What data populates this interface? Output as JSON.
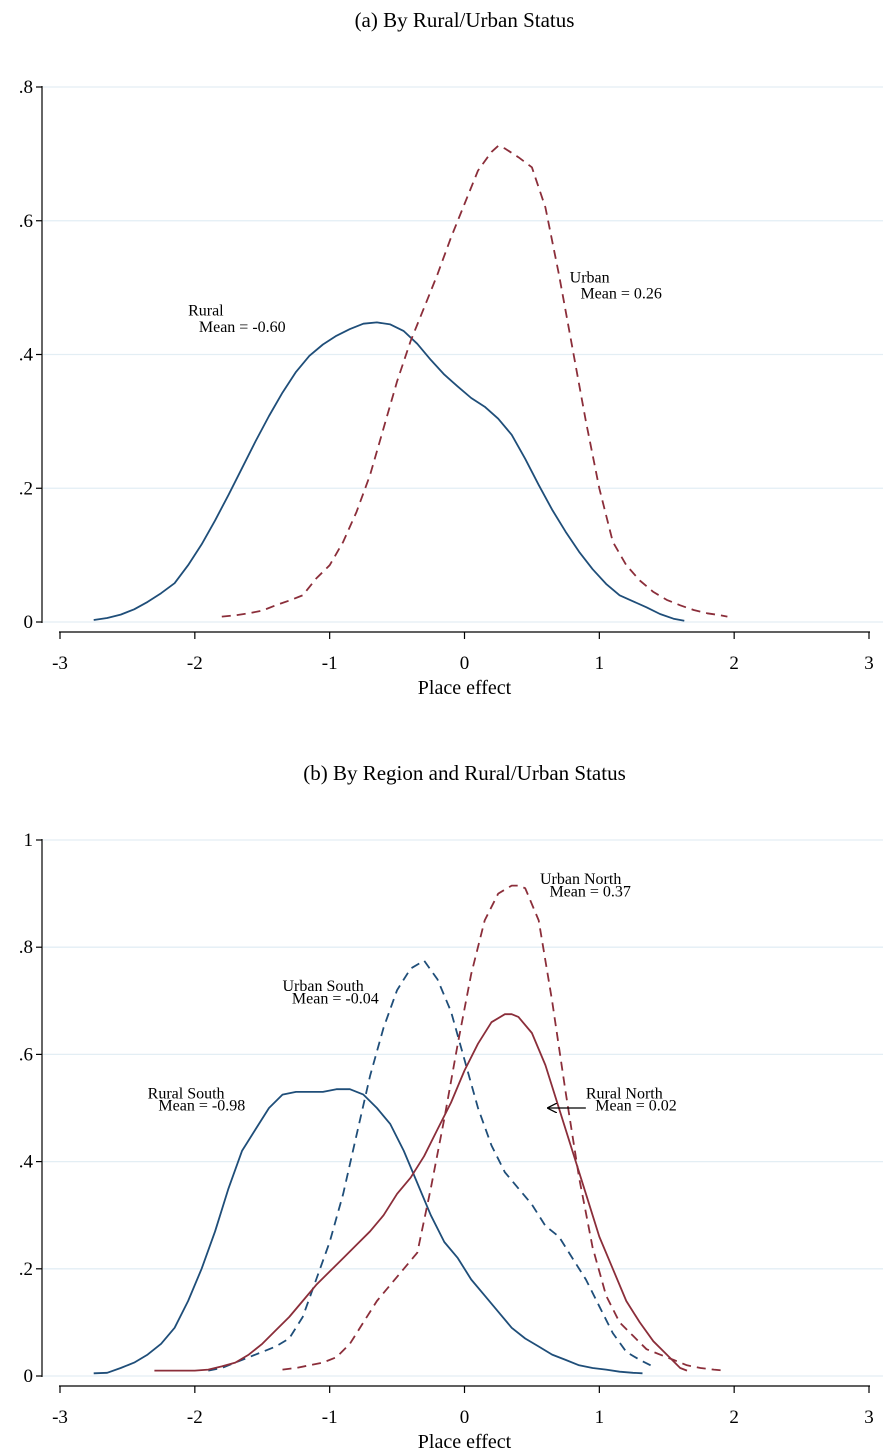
{
  "colors": {
    "rural": "#1f4e79",
    "urban": "#8b2e3a",
    "grid": "#e3eef4"
  },
  "chart_data": [
    {
      "type": "line",
      "title": "(a) By Rural/Urban Status",
      "xlabel": "Place effect",
      "ylabel": "",
      "xlim": [
        -3,
        3
      ],
      "ylim": [
        0,
        0.8
      ],
      "xticks": [
        -3,
        -2,
        -1,
        0,
        1,
        2,
        3
      ],
      "xtick_labels": [
        "-3",
        "-2",
        "-1",
        "0",
        "1",
        "2",
        "3"
      ],
      "yticks": [
        0,
        0.2,
        0.4,
        0.6,
        0.8
      ],
      "ytick_labels": [
        "0",
        ".2",
        ".4",
        ".6",
        ".8"
      ],
      "grid": true,
      "series": [
        {
          "key": "rural",
          "name": "Rural",
          "mean_label": "Mean = -0.60",
          "color_key": "rural",
          "dash": "solid",
          "x": [
            -2.75,
            -2.65,
            -2.55,
            -2.45,
            -2.35,
            -2.25,
            -2.15,
            -2.05,
            -1.95,
            -1.85,
            -1.75,
            -1.65,
            -1.55,
            -1.45,
            -1.35,
            -1.25,
            -1.15,
            -1.05,
            -0.95,
            -0.85,
            -0.75,
            -0.65,
            -0.55,
            -0.45,
            -0.35,
            -0.25,
            -0.15,
            -0.05,
            0.05,
            0.15,
            0.25,
            0.35,
            0.45,
            0.55,
            0.65,
            0.75,
            0.85,
            0.95,
            1.05,
            1.15,
            1.25,
            1.35,
            1.45,
            1.55,
            1.63
          ],
          "y": [
            0.003,
            0.006,
            0.011,
            0.019,
            0.03,
            0.043,
            0.058,
            0.085,
            0.116,
            0.152,
            0.19,
            0.23,
            0.27,
            0.308,
            0.343,
            0.374,
            0.398,
            0.415,
            0.428,
            0.438,
            0.446,
            0.448,
            0.445,
            0.435,
            0.416,
            0.392,
            0.37,
            0.352,
            0.335,
            0.322,
            0.304,
            0.28,
            0.244,
            0.205,
            0.168,
            0.135,
            0.105,
            0.079,
            0.057,
            0.04,
            0.031,
            0.022,
            0.012,
            0.005,
            0.002
          ]
        },
        {
          "key": "urban",
          "name": "Urban",
          "mean_label": "Mean = 0.26",
          "color_key": "urban",
          "dash": "dashed",
          "x": [
            -1.8,
            -1.7,
            -1.6,
            -1.5,
            -1.4,
            -1.3,
            -1.2,
            -1.1,
            -1.0,
            -0.9,
            -0.8,
            -0.7,
            -0.6,
            -0.5,
            -0.4,
            -0.3,
            -0.2,
            -0.1,
            0.0,
            0.1,
            0.2,
            0.25,
            0.3,
            0.4,
            0.5,
            0.6,
            0.7,
            0.8,
            0.9,
            1.0,
            1.1,
            1.2,
            1.3,
            1.4,
            1.5,
            1.6,
            1.7,
            1.8,
            1.9,
            1.95
          ],
          "y": [
            0.008,
            0.01,
            0.013,
            0.017,
            0.025,
            0.032,
            0.04,
            0.065,
            0.085,
            0.12,
            0.165,
            0.22,
            0.29,
            0.36,
            0.42,
            0.47,
            0.52,
            0.575,
            0.625,
            0.675,
            0.703,
            0.712,
            0.708,
            0.695,
            0.68,
            0.62,
            0.52,
            0.41,
            0.3,
            0.2,
            0.12,
            0.085,
            0.062,
            0.045,
            0.033,
            0.025,
            0.018,
            0.013,
            0.01,
            0.008
          ]
        }
      ],
      "annotations": [
        {
          "series": "rural",
          "name_x": -2.05,
          "name_y": 0.458,
          "mean_x": -1.97,
          "mean_y": 0.434
        },
        {
          "series": "urban",
          "name_x": 0.78,
          "name_y": 0.508,
          "mean_x": 0.86,
          "mean_y": 0.484
        }
      ]
    },
    {
      "type": "line",
      "title": "(b) By Region and Rural/Urban Status",
      "xlabel": "Place effect",
      "ylabel": "",
      "xlim": [
        -3,
        3
      ],
      "ylim": [
        0,
        1
      ],
      "xticks": [
        -3,
        -2,
        -1,
        0,
        1,
        2,
        3
      ],
      "xtick_labels": [
        "-3",
        "-2",
        "-1",
        "0",
        "1",
        "2",
        "3"
      ],
      "yticks": [
        0,
        0.2,
        0.4,
        0.6,
        0.8,
        1.0
      ],
      "ytick_labels": [
        "0",
        ".2",
        ".4",
        ".6",
        ".8",
        "1"
      ],
      "grid": true,
      "series": [
        {
          "key": "rural_south",
          "name": "Rural South",
          "mean_label": "Mean = -0.98",
          "color_key": "rural",
          "dash": "solid",
          "x": [
            -2.75,
            -2.65,
            -2.55,
            -2.45,
            -2.35,
            -2.25,
            -2.15,
            -2.05,
            -1.95,
            -1.85,
            -1.75,
            -1.65,
            -1.55,
            -1.45,
            -1.35,
            -1.25,
            -1.15,
            -1.05,
            -0.95,
            -0.85,
            -0.75,
            -0.65,
            -0.55,
            -0.45,
            -0.35,
            -0.25,
            -0.15,
            -0.05,
            0.05,
            0.15,
            0.25,
            0.35,
            0.45,
            0.55,
            0.65,
            0.75,
            0.85,
            0.95,
            1.05,
            1.15,
            1.25,
            1.32
          ],
          "y": [
            0.005,
            0.006,
            0.015,
            0.025,
            0.04,
            0.06,
            0.09,
            0.14,
            0.2,
            0.27,
            0.35,
            0.42,
            0.46,
            0.5,
            0.525,
            0.53,
            0.53,
            0.53,
            0.535,
            0.535,
            0.525,
            0.5,
            0.47,
            0.42,
            0.36,
            0.3,
            0.25,
            0.22,
            0.18,
            0.15,
            0.12,
            0.09,
            0.07,
            0.055,
            0.04,
            0.03,
            0.02,
            0.015,
            0.012,
            0.008,
            0.006,
            0.005
          ]
        },
        {
          "key": "urban_south",
          "name": "Urban South",
          "mean_label": "Mean = -0.04",
          "color_key": "rural",
          "dash": "dashed",
          "x": [
            -1.9,
            -1.8,
            -1.7,
            -1.6,
            -1.5,
            -1.4,
            -1.3,
            -1.2,
            -1.1,
            -1.0,
            -0.9,
            -0.8,
            -0.7,
            -0.6,
            -0.5,
            -0.4,
            -0.3,
            -0.2,
            -0.1,
            0.0,
            0.1,
            0.2,
            0.3,
            0.4,
            0.5,
            0.6,
            0.7,
            0.8,
            0.9,
            1.0,
            1.1,
            1.2,
            1.3,
            1.38
          ],
          "y": [
            0.01,
            0.015,
            0.025,
            0.035,
            0.045,
            0.055,
            0.07,
            0.11,
            0.18,
            0.25,
            0.34,
            0.45,
            0.56,
            0.65,
            0.72,
            0.76,
            0.775,
            0.74,
            0.68,
            0.59,
            0.5,
            0.43,
            0.38,
            0.35,
            0.32,
            0.28,
            0.26,
            0.22,
            0.18,
            0.13,
            0.08,
            0.045,
            0.03,
            0.02
          ]
        },
        {
          "key": "rural_north",
          "name": "Rural North",
          "mean_label": "Mean = 0.02",
          "color_key": "urban",
          "dash": "solid",
          "x": [
            -2.3,
            -2.2,
            -2.1,
            -2.0,
            -1.9,
            -1.8,
            -1.7,
            -1.6,
            -1.5,
            -1.4,
            -1.3,
            -1.2,
            -1.1,
            -1.0,
            -0.9,
            -0.8,
            -0.7,
            -0.6,
            -0.5,
            -0.4,
            -0.3,
            -0.2,
            -0.1,
            0.0,
            0.1,
            0.2,
            0.3,
            0.35,
            0.4,
            0.5,
            0.6,
            0.7,
            0.8,
            0.9,
            1.0,
            1.1,
            1.2,
            1.3,
            1.4,
            1.5,
            1.6,
            1.65
          ],
          "y": [
            0.01,
            0.01,
            0.01,
            0.01,
            0.012,
            0.018,
            0.025,
            0.04,
            0.06,
            0.085,
            0.11,
            0.14,
            0.17,
            0.195,
            0.22,
            0.245,
            0.27,
            0.3,
            0.34,
            0.37,
            0.41,
            0.46,
            0.51,
            0.57,
            0.62,
            0.66,
            0.675,
            0.675,
            0.67,
            0.64,
            0.58,
            0.5,
            0.42,
            0.34,
            0.26,
            0.2,
            0.14,
            0.1,
            0.065,
            0.04,
            0.015,
            0.01
          ]
        },
        {
          "key": "urban_north",
          "name": "Urban North",
          "mean_label": "Mean = 0.37",
          "color_key": "urban",
          "dash": "dashed",
          "x": [
            -1.35,
            -1.25,
            -1.15,
            -1.05,
            -0.95,
            -0.85,
            -0.75,
            -0.65,
            -0.55,
            -0.45,
            -0.35,
            -0.25,
            -0.15,
            -0.05,
            0.05,
            0.15,
            0.25,
            0.35,
            0.4,
            0.45,
            0.55,
            0.65,
            0.75,
            0.85,
            0.95,
            1.05,
            1.15,
            1.25,
            1.35,
            1.45,
            1.55,
            1.65,
            1.75,
            1.85,
            1.93
          ],
          "y": [
            0.012,
            0.015,
            0.02,
            0.025,
            0.035,
            0.06,
            0.1,
            0.14,
            0.17,
            0.2,
            0.23,
            0.35,
            0.48,
            0.62,
            0.75,
            0.85,
            0.9,
            0.915,
            0.915,
            0.91,
            0.85,
            0.7,
            0.53,
            0.37,
            0.24,
            0.15,
            0.1,
            0.075,
            0.05,
            0.04,
            0.03,
            0.02,
            0.015,
            0.012,
            0.01
          ]
        }
      ],
      "annotations": [
        {
          "series": "rural_south",
          "name_x": -2.35,
          "name_y": 0.518,
          "mean_x": -2.27,
          "mean_y": 0.495
        },
        {
          "series": "urban_south",
          "name_x": -1.35,
          "name_y": 0.718,
          "mean_x": -1.28,
          "mean_y": 0.695
        },
        {
          "series": "rural_north",
          "name_x": 0.9,
          "name_y": 0.518,
          "mean_x": 0.97,
          "mean_y": 0.495,
          "arrow_from": [
            0.9,
            0.5
          ],
          "arrow_to": [
            0.62,
            0.5
          ]
        },
        {
          "series": "urban_north",
          "name_x": 0.56,
          "name_y": 0.918,
          "mean_x": 0.63,
          "mean_y": 0.895
        }
      ]
    }
  ]
}
